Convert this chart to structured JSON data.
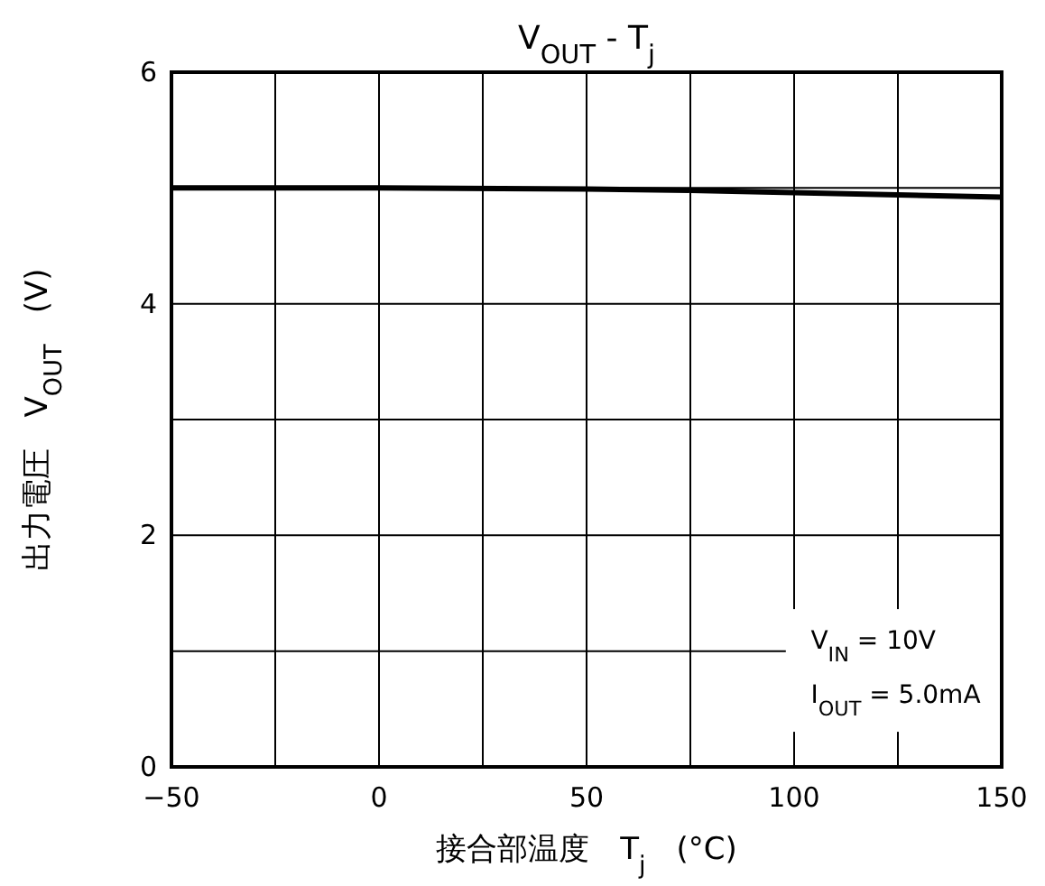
{
  "chart_data": {
    "type": "line",
    "title": "V$_{OUT}$ - T$_{j}$",
    "xlabel": "接合部温度　T$_{j}$　(°C)",
    "ylabel": "出力電圧　V$_{OUT}$　(V)",
    "x": [
      -50,
      0,
      50,
      75,
      100,
      125,
      150
    ],
    "series": [
      {
        "color": "#000000",
        "values": [
          5.0,
          5.0,
          4.99,
          4.98,
          4.96,
          4.94,
          4.92
        ]
      }
    ],
    "xlim": [
      -50,
      150
    ],
    "ylim": [
      0,
      6
    ],
    "xticks": [
      -50,
      {
        "value": -25,
        "label": null
      },
      0,
      {
        "value": 25,
        "label": null
      },
      50,
      {
        "value": 75,
        "label": null
      },
      100,
      {
        "value": 125,
        "label": null
      },
      150
    ],
    "yticks": [
      0,
      {
        "value": 1,
        "label": null
      },
      2,
      {
        "value": 3,
        "label": null
      },
      4,
      {
        "value": 5,
        "label": null
      },
      6
    ],
    "grid": true,
    "marker": "none",
    "line_style": "solid",
    "annotations": [
      "V$_{IN}$ = 10V",
      "I$_{OUT}$ = 5.0mA"
    ]
  }
}
